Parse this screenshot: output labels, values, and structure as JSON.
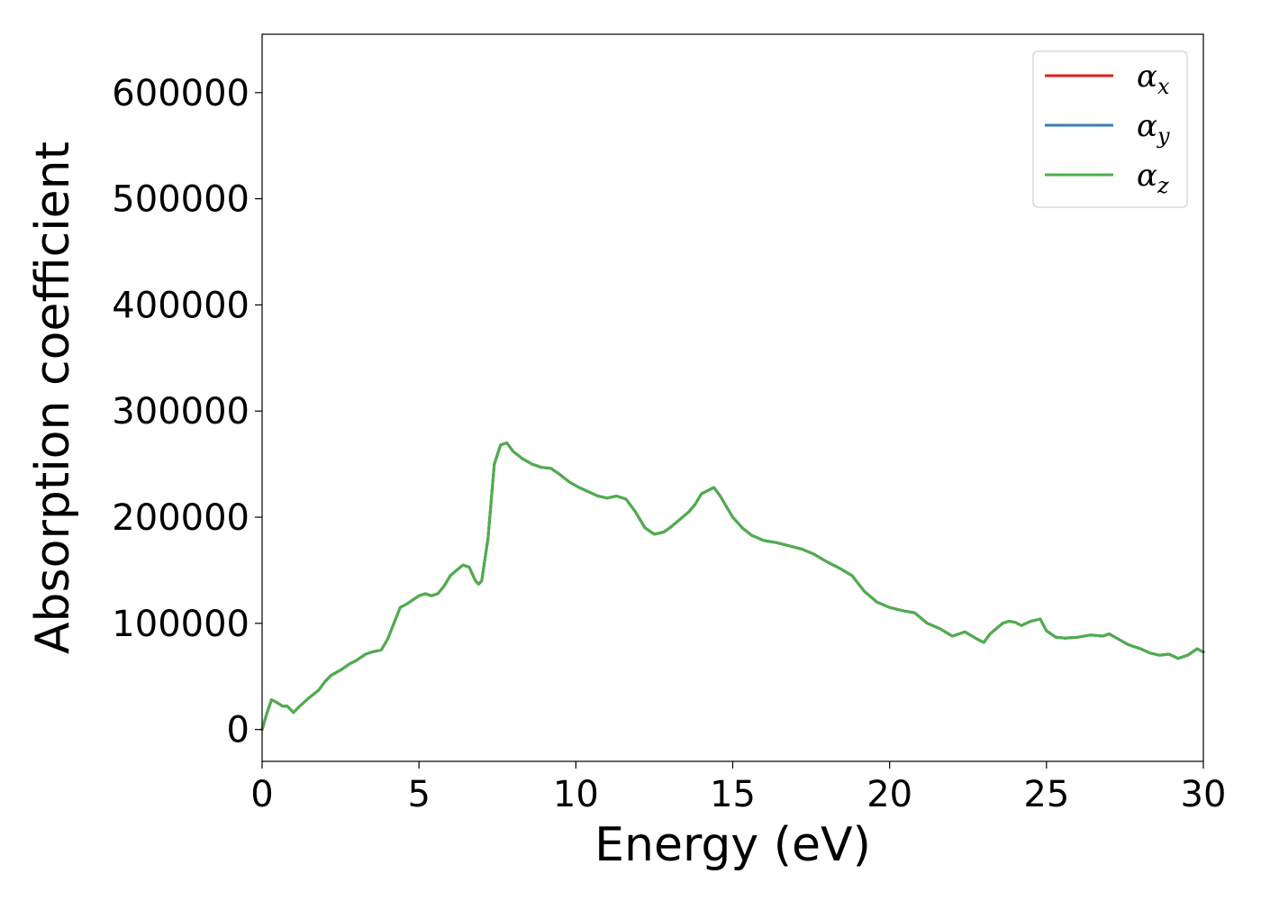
{
  "chart_data": {
    "type": "line",
    "xlabel": "Energy (eV)",
    "ylabel": "Absorption coefficient",
    "xlim": [
      0,
      30
    ],
    "ylim": [
      -30000,
      655000
    ],
    "x_ticks": [
      "0",
      "5",
      "10",
      "15",
      "20",
      "25",
      "30"
    ],
    "y_ticks": [
      "0",
      "100000",
      "200000",
      "300000",
      "400000",
      "500000",
      "600000"
    ],
    "grid": false,
    "legend": {
      "placement": "top-right",
      "entries": [
        {
          "base": "α",
          "sub": "x",
          "color": "#e41a1c"
        },
        {
          "base": "α",
          "sub": "y",
          "color": "#377eb8"
        },
        {
          "base": "α",
          "sub": "z",
          "color": "#4daf4a"
        }
      ]
    },
    "x": [
      0,
      0.15,
      0.3,
      0.5,
      0.65,
      0.8,
      1.0,
      1.2,
      1.5,
      1.8,
      2.0,
      2.2,
      2.5,
      2.8,
      3.0,
      3.3,
      3.5,
      3.8,
      4.0,
      4.2,
      4.4,
      4.6,
      4.8,
      5.0,
      5.2,
      5.4,
      5.6,
      5.8,
      6.0,
      6.2,
      6.4,
      6.6,
      6.8,
      6.9,
      7.0,
      7.2,
      7.4,
      7.6,
      7.8,
      8.0,
      8.3,
      8.6,
      8.9,
      9.2,
      9.5,
      9.8,
      10.1,
      10.4,
      10.7,
      11.0,
      11.3,
      11.6,
      11.9,
      12.2,
      12.5,
      12.8,
      13.0,
      13.2,
      13.4,
      13.6,
      13.8,
      14.0,
      14.2,
      14.4,
      14.6,
      14.8,
      15.0,
      15.3,
      15.6,
      16.0,
      16.4,
      16.8,
      17.2,
      17.6,
      18.0,
      18.4,
      18.8,
      19.2,
      19.6,
      20.0,
      20.4,
      20.8,
      21.2,
      21.6,
      22.0,
      22.4,
      22.8,
      23.0,
      23.2,
      23.6,
      23.8,
      24.0,
      24.2,
      24.5,
      24.8,
      25.0,
      25.3,
      25.6,
      26.0,
      26.4,
      26.8,
      27.0,
      27.3,
      27.6,
      28.0,
      28.3,
      28.6,
      28.9,
      29.2,
      29.5,
      29.8,
      30.0
    ],
    "series": [
      {
        "name": "αx",
        "color": "#e41a1c",
        "values": [
          0,
          15000,
          28000,
          25000,
          22000,
          22000,
          16000,
          22000,
          30000,
          37000,
          45000,
          51000,
          56000,
          62000,
          65000,
          71000,
          73000,
          75000,
          85000,
          100000,
          115000,
          118000,
          122000,
          126000,
          128000,
          126000,
          128000,
          135000,
          145000,
          150000,
          155000,
          153000,
          140000,
          137000,
          140000,
          180000,
          250000,
          268000,
          270000,
          262000,
          255000,
          250000,
          247000,
          246000,
          240000,
          233000,
          228000,
          224000,
          220000,
          218000,
          220000,
          217000,
          205000,
          190000,
          184000,
          186000,
          190000,
          195000,
          200000,
          205000,
          212000,
          222000,
          225000,
          228000,
          220000,
          210000,
          200000,
          190000,
          183000,
          178000,
          176000,
          173000,
          170000,
          165000,
          158000,
          152000,
          145000,
          130000,
          120000,
          115000,
          112000,
          110000,
          100000,
          95000,
          88000,
          92000,
          85000,
          82000,
          90000,
          100000,
          102000,
          101000,
          98000,
          102000,
          104000,
          93000,
          87000,
          86000,
          87000,
          89000,
          88000,
          90000,
          85000,
          80000,
          76000,
          72000,
          70000,
          71000,
          67000,
          70000,
          76000,
          73000
        ]
      },
      {
        "name": "αy",
        "color": "#377eb8",
        "values": [
          0,
          15000,
          28000,
          25000,
          22000,
          22000,
          16000,
          22000,
          30000,
          37000,
          45000,
          51000,
          56000,
          62000,
          65000,
          71000,
          73000,
          75000,
          85000,
          100000,
          115000,
          118000,
          122000,
          126000,
          128000,
          126000,
          128000,
          135000,
          145000,
          150000,
          155000,
          153000,
          140000,
          137000,
          140000,
          180000,
          250000,
          268000,
          270000,
          262000,
          255000,
          250000,
          247000,
          246000,
          240000,
          233000,
          228000,
          224000,
          220000,
          218000,
          220000,
          217000,
          205000,
          190000,
          184000,
          186000,
          190000,
          195000,
          200000,
          205000,
          212000,
          222000,
          225000,
          228000,
          220000,
          210000,
          200000,
          190000,
          183000,
          178000,
          176000,
          173000,
          170000,
          165000,
          158000,
          152000,
          145000,
          130000,
          120000,
          115000,
          112000,
          110000,
          100000,
          95000,
          88000,
          92000,
          85000,
          82000,
          90000,
          100000,
          102000,
          101000,
          98000,
          102000,
          104000,
          93000,
          87000,
          86000,
          87000,
          89000,
          88000,
          90000,
          85000,
          80000,
          76000,
          72000,
          70000,
          71000,
          67000,
          70000,
          76000,
          73000
        ]
      },
      {
        "name": "αz",
        "color": "#4daf4a",
        "values": [
          0,
          15000,
          28000,
          25000,
          22000,
          22000,
          16000,
          22000,
          30000,
          37000,
          45000,
          51000,
          56000,
          62000,
          65000,
          71000,
          73000,
          75000,
          85000,
          100000,
          115000,
          118000,
          122000,
          126000,
          128000,
          126000,
          128000,
          135000,
          145000,
          150000,
          155000,
          153000,
          140000,
          137000,
          140000,
          180000,
          250000,
          268000,
          270000,
          262000,
          255000,
          250000,
          247000,
          246000,
          240000,
          233000,
          228000,
          224000,
          220000,
          218000,
          220000,
          217000,
          205000,
          190000,
          184000,
          186000,
          190000,
          195000,
          200000,
          205000,
          212000,
          222000,
          225000,
          228000,
          220000,
          210000,
          200000,
          190000,
          183000,
          178000,
          176000,
          173000,
          170000,
          165000,
          158000,
          152000,
          145000,
          130000,
          120000,
          115000,
          112000,
          110000,
          100000,
          95000,
          88000,
          92000,
          85000,
          82000,
          90000,
          100000,
          102000,
          101000,
          98000,
          102000,
          104000,
          93000,
          87000,
          86000,
          87000,
          89000,
          88000,
          90000,
          85000,
          80000,
          76000,
          72000,
          70000,
          71000,
          67000,
          70000,
          76000,
          73000
        ]
      }
    ]
  }
}
